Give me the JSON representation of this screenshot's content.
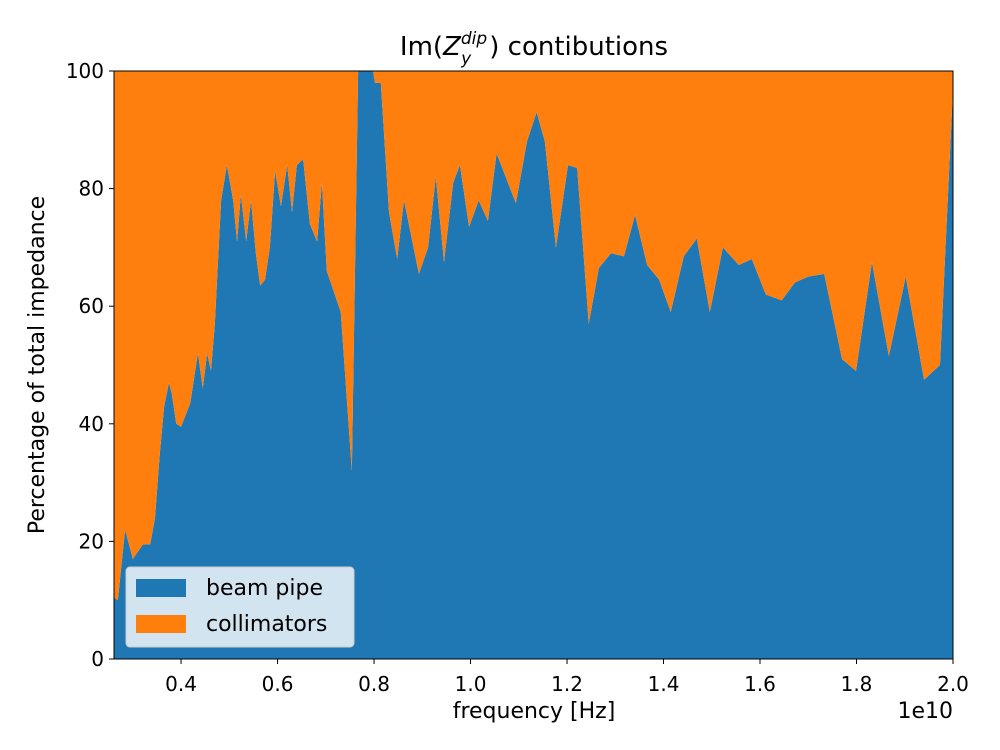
{
  "chart_data": {
    "type": "stacked-area",
    "title": {
      "prefix": "Im(",
      "symbol": "Z",
      "subscript": "y",
      "superscript": "dip",
      "suffix": ") contibutions"
    },
    "x_label": "frequency [Hz]",
    "y_label": "Percentage of total impedance",
    "x_offset_label": "1e10",
    "x": [
      0.261,
      0.269,
      0.284,
      0.3,
      0.321,
      0.336,
      0.346,
      0.356,
      0.365,
      0.375,
      0.381,
      0.39,
      0.4,
      0.419,
      0.435,
      0.445,
      0.454,
      0.462,
      0.47,
      0.483,
      0.495,
      0.508,
      0.516,
      0.524,
      0.535,
      0.545,
      0.555,
      0.564,
      0.574,
      0.584,
      0.595,
      0.607,
      0.62,
      0.63,
      0.64,
      0.653,
      0.667,
      0.682,
      0.692,
      0.702,
      0.731,
      0.754,
      0.767,
      0.798,
      0.802,
      0.814,
      0.831,
      0.848,
      0.862,
      0.893,
      0.912,
      0.928,
      0.945,
      0.964,
      0.978,
      0.997,
      1.017,
      1.036,
      1.054,
      1.094,
      1.117,
      1.137,
      1.154,
      1.177,
      1.202,
      1.221,
      1.245,
      1.266,
      1.291,
      1.318,
      1.341,
      1.366,
      1.391,
      1.415,
      1.442,
      1.469,
      1.496,
      1.523,
      1.556,
      1.583,
      1.612,
      1.645,
      1.672,
      1.699,
      1.733,
      1.77,
      1.799,
      1.832,
      1.867,
      1.902,
      1.94,
      1.973,
      2.0
    ],
    "series": [
      {
        "name": "beam pipe",
        "color": "#1f77b4",
        "values": [
          10.5,
          10,
          22,
          17,
          19.5,
          19.5,
          24,
          35,
          43,
          47,
          45,
          40,
          39.5,
          43.5,
          52,
          46,
          52,
          49,
          57,
          78,
          84,
          78,
          71,
          79,
          71,
          78,
          69,
          63.5,
          64.5,
          70,
          83,
          77,
          84,
          76,
          84,
          85,
          74,
          71,
          81,
          66,
          59,
          32,
          100,
          100,
          98,
          98,
          76,
          68,
          78,
          65.5,
          70,
          82,
          67.5,
          81,
          84,
          73.5,
          78,
          74.5,
          86,
          77.5,
          88,
          93,
          88,
          70,
          84,
          83.5,
          57,
          66.5,
          69,
          68.5,
          75.5,
          67,
          64.5,
          59,
          68.5,
          71.5,
          59,
          70,
          67,
          68,
          62,
          61,
          64,
          65,
          65.5,
          51,
          49,
          67.5,
          51.5,
          65,
          47.5,
          50,
          97
        ]
      },
      {
        "name": "collimators",
        "color": "#ff7f0e",
        "values": [
          89.5,
          90,
          78,
          83,
          80.5,
          80.5,
          76,
          65,
          57,
          53,
          55,
          60,
          60.5,
          56.5,
          48,
          54,
          48,
          51,
          43,
          22,
          16,
          22,
          29,
          21,
          29,
          22,
          31,
          36.5,
          35.5,
          30,
          17,
          23,
          16,
          24,
          16,
          15,
          26,
          29,
          19,
          34,
          41,
          68,
          0,
          0,
          2,
          2,
          24,
          32,
          22,
          34.5,
          30,
          18,
          32.5,
          19,
          16,
          26.5,
          22,
          25.5,
          14,
          22.5,
          12,
          7,
          12,
          30,
          16,
          16.5,
          43,
          33.5,
          31,
          31.5,
          24.5,
          33,
          35.5,
          41,
          31.5,
          28.5,
          41,
          30,
          33,
          32,
          38,
          39,
          36,
          35,
          34.5,
          49,
          51,
          32.5,
          48.5,
          35,
          52.5,
          50,
          3
        ]
      }
    ],
    "xlim": [
      0.261,
      2.0
    ],
    "ylim": [
      0,
      100
    ],
    "xticks": [
      0.4,
      0.6,
      0.8,
      {
        "value": 1,
        "label": "1.0"
      },
      1.2,
      1.4,
      1.6,
      1.8,
      {
        "value": 2,
        "label": "2.0"
      }
    ],
    "yticks": [
      0,
      20,
      40,
      60,
      80,
      100
    ],
    "legend": "lower left"
  }
}
